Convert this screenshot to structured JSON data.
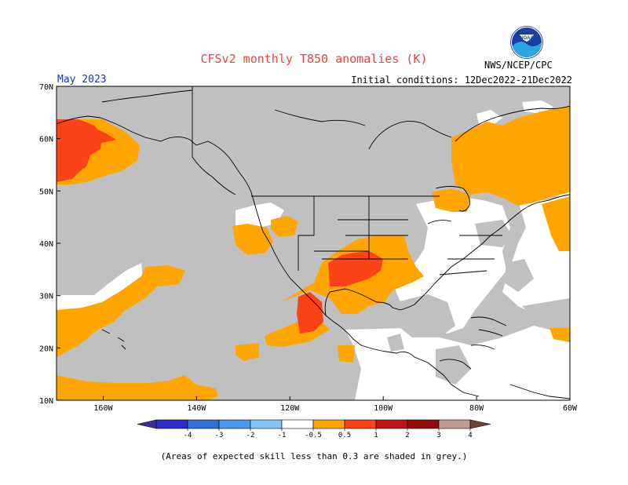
{
  "title": "CFSv2 monthly T850 anomalies (K)",
  "valid_month": "May 2023",
  "initial_conditions": "Initial conditions: 12Dec2022-21Dec2022",
  "agency": "NWS/NCEP/CPC",
  "logo_text": "NOAA",
  "footnote": "(Areas of expected skill less than 0.3 are shaded in grey.)",
  "colors": {
    "grey_low_skill": "#c0c0c0",
    "orange_0p5_1": "#ffa500",
    "red_1_2": "#fc4217",
    "white_neutral": "#ffffff",
    "title": "#e8453c",
    "month": "#1f2fd0"
  },
  "map": {
    "lat_labels": [
      "70N",
      "60N",
      "50N",
      "40N",
      "30N",
      "20N",
      "10N"
    ],
    "lon_labels": [
      "160W",
      "140W",
      "120W",
      "100W",
      "80W",
      "60W"
    ]
  },
  "legend": {
    "ticks": [
      "-4",
      "-3",
      "-2",
      "-1",
      "-0.5",
      "0.5",
      "1",
      "2",
      "3",
      "4"
    ],
    "bins": [
      {
        "range": "< -4",
        "color": "#3a2ea0"
      },
      {
        "range": "-4 to -3",
        "color": "#2a2bc8"
      },
      {
        "range": "-3 to -2",
        "color": "#2f6fd6"
      },
      {
        "range": "-2 to -1",
        "color": "#4a97ee"
      },
      {
        "range": "-1 to -0.5",
        "color": "#86c2f6"
      },
      {
        "range": "-0.5 to 0.5",
        "color": "#ffffff"
      },
      {
        "range": "0.5 to 1",
        "color": "#ffa500"
      },
      {
        "range": "1 to 2",
        "color": "#fc4217"
      },
      {
        "range": "2 to 3",
        "color": "#c0101a"
      },
      {
        "range": "3 to 4",
        "color": "#950a0a"
      },
      {
        "range": "4 to 5",
        "color": "#c09a90"
      },
      {
        "range": "> 5",
        "color": "#6e4437"
      }
    ]
  }
}
